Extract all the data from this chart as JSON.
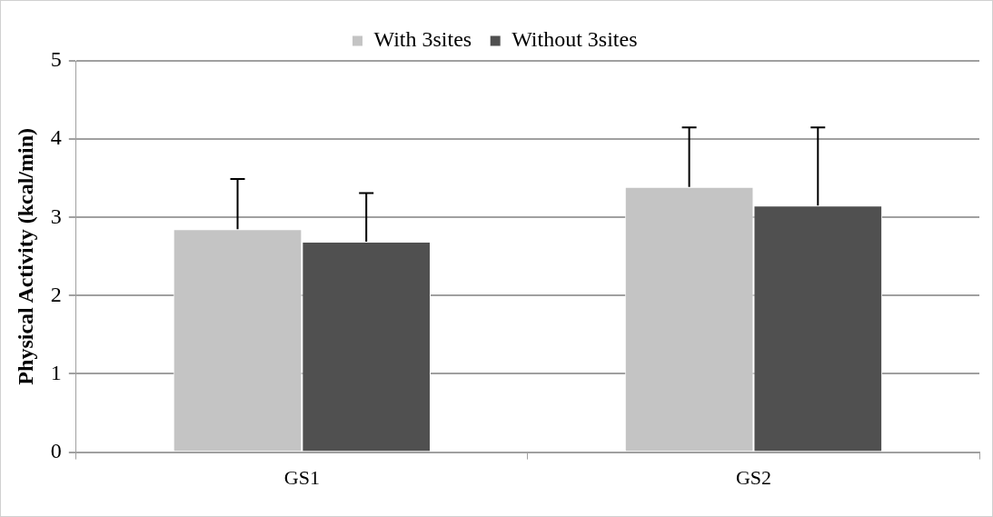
{
  "chart_data": {
    "type": "bar",
    "ylabel": "Physical Activity (kcal/min)",
    "categories": [
      "GS1",
      "GS2"
    ],
    "series": [
      {
        "name": "With 3sites",
        "color": "#c4c4c4",
        "values": [
          2.85,
          3.39
        ],
        "errors": [
          [
            2.85,
            3.49
          ],
          [
            3.39,
            4.15
          ]
        ]
      },
      {
        "name": "Without 3sites",
        "color": "#505050",
        "values": [
          2.69,
          3.15
        ],
        "errors": [
          [
            2.69,
            3.31
          ],
          [
            3.15,
            4.15
          ]
        ]
      }
    ],
    "ylim": [
      0,
      5
    ],
    "yticks": [
      0,
      1,
      2,
      3,
      4,
      5
    ],
    "grid": "y",
    "legend": "top"
  }
}
